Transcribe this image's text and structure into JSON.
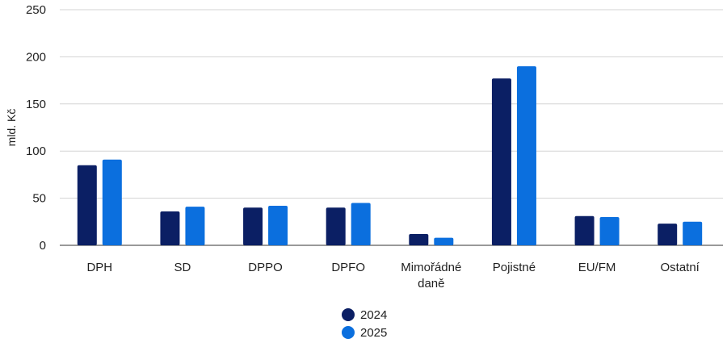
{
  "chart_data": {
    "type": "bar",
    "title": "",
    "xlabel": "",
    "ylabel": "mld. Kč",
    "ylim": [
      0,
      250
    ],
    "yticks": [
      0,
      50,
      100,
      150,
      200,
      250
    ],
    "grid": true,
    "legend_position": "bottom",
    "categories": [
      [
        "DPH"
      ],
      [
        "SD"
      ],
      [
        "DPPO"
      ],
      [
        "DPFO"
      ],
      [
        "Mimořádné",
        "daně"
      ],
      [
        "Pojistné"
      ],
      [
        "EU/FM"
      ],
      [
        "Ostatní"
      ]
    ],
    "series": [
      {
        "name": "2024",
        "color": "#0b1f64",
        "values": [
          85,
          36,
          40,
          40,
          12,
          177,
          31,
          23
        ]
      },
      {
        "name": "2025",
        "color": "#0b6fde",
        "values": [
          91,
          41,
          42,
          45,
          8,
          190,
          30,
          25
        ]
      }
    ]
  }
}
